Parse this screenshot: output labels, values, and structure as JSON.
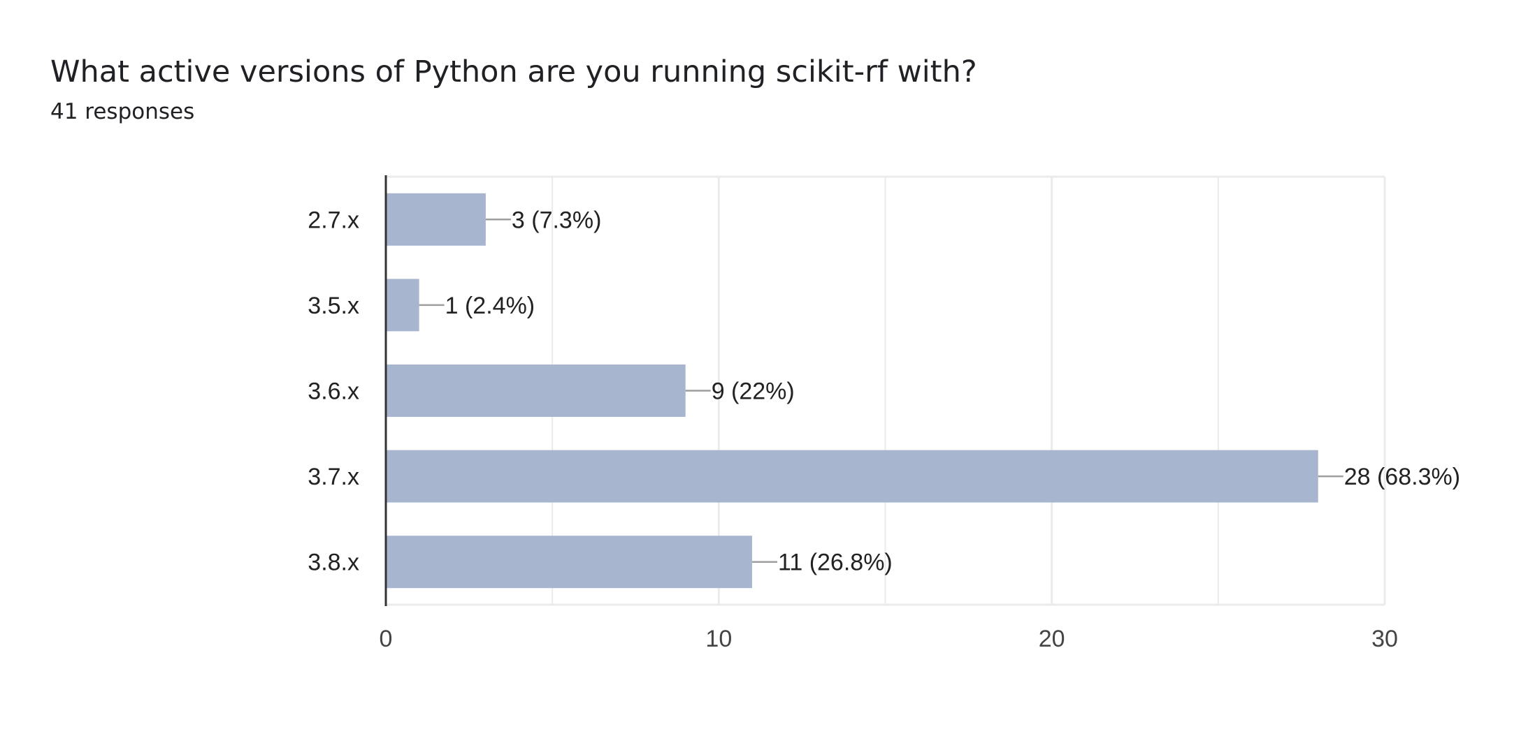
{
  "title": "What active versions of Python are you running scikit-rf with?",
  "subtitle": "41 responses",
  "colors": {
    "bar": "#a7b6ce",
    "grid": "#ebebeb",
    "axis": "#333333",
    "leader": "#9e9e9e"
  },
  "chart_data": {
    "type": "bar",
    "orientation": "horizontal",
    "categories": [
      "2.7.x",
      "3.5.x",
      "3.6.x",
      "3.7.x",
      "3.8.x"
    ],
    "values": [
      3,
      1,
      9,
      28,
      11
    ],
    "data_labels": [
      "3 (7.3%)",
      "1 (2.4%)",
      "9 (22%)",
      "28 (68.3%)",
      "11 (26.8%)"
    ],
    "xlim": [
      0,
      30
    ],
    "xticks": [
      0,
      10,
      20,
      30
    ],
    "minor_gridlines": [
      5,
      15,
      25
    ],
    "grid": true,
    "legend": "none"
  }
}
